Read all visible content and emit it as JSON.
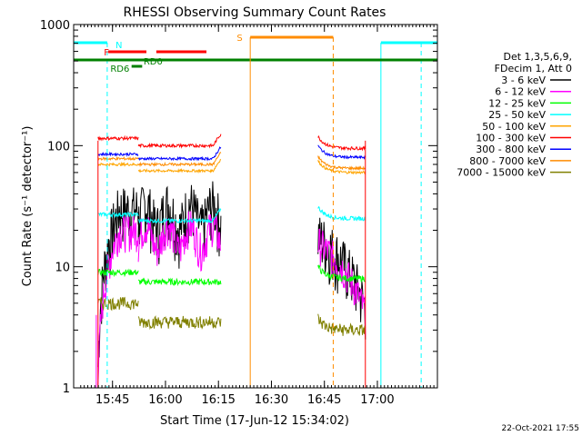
{
  "chart_data": {
    "type": "line",
    "title": "RHESSI Observing Summary Count Rates",
    "xlabel": "Start Time (17-Jun-12 15:34:02)",
    "ylabel": "Count Rate (s⁻¹ detector⁻¹)",
    "yscale": "log",
    "ylim": [
      1,
      1000
    ],
    "xlim_minutes": [
      0,
      103
    ],
    "x_ticks": [
      {
        "label": "15:45",
        "minute": 11
      },
      {
        "label": "16:00",
        "minute": 26
      },
      {
        "label": "16:15",
        "minute": 41
      },
      {
        "label": "16:30",
        "minute": 56
      },
      {
        "label": "16:45",
        "minute": 71
      },
      {
        "label": "17:00",
        "minute": 86
      }
    ],
    "y_ticks": [
      {
        "label": "1",
        "value": 1
      },
      {
        "label": "10",
        "value": 10
      },
      {
        "label": "100",
        "value": 100
      },
      {
        "label": "1000",
        "value": 1000
      }
    ],
    "legend_header": [
      "Det 1,3,5,6,9,",
      "FDecim 1, Att 0"
    ],
    "legend_position": "right",
    "series": [
      {
        "name": "3 - 6 keV",
        "color": "#000000",
        "values": [
          1.5,
          30,
          18,
          2
        ]
      },
      {
        "name": "6 - 12 keV",
        "color": "#ff00ff",
        "values": [
          1,
          20,
          16,
          1.5
        ]
      },
      {
        "name": "12 - 25 keV",
        "color": "#00ff00",
        "values": [
          9,
          7.5,
          9,
          8
        ]
      },
      {
        "name": "25 - 50 keV",
        "color": "#00ffff",
        "values": [
          27,
          24,
          30,
          25
        ]
      },
      {
        "name": "50 - 100 keV",
        "color": "#ffa500",
        "values": [
          70,
          62,
          75,
          60
        ]
      },
      {
        "name": "100 - 300 keV",
        "color": "#ff0000",
        "values": [
          115,
          100,
          125,
          95
        ]
      },
      {
        "name": "300 - 800 keV",
        "color": "#0000ff",
        "values": [
          85,
          78,
          92,
          80
        ]
      },
      {
        "name": "800 - 7000 keV",
        "color": "#ff8c00",
        "values": [
          78,
          70,
          80,
          65
        ]
      },
      {
        "name": "7000 - 15000 keV",
        "color": "#808000",
        "values": [
          5,
          3.5,
          3.8,
          3
        ]
      }
    ],
    "annotations": [
      {
        "label": "N",
        "color": "#00ffff"
      },
      {
        "label": "F",
        "color": "#ff0000"
      },
      {
        "label": "RD0",
        "color": "#008000"
      },
      {
        "label": "RD6",
        "color": "#008000"
      },
      {
        "label": "S",
        "color": "#ff8c00"
      }
    ],
    "footer_date": "22-Oct-2021 17:55"
  }
}
